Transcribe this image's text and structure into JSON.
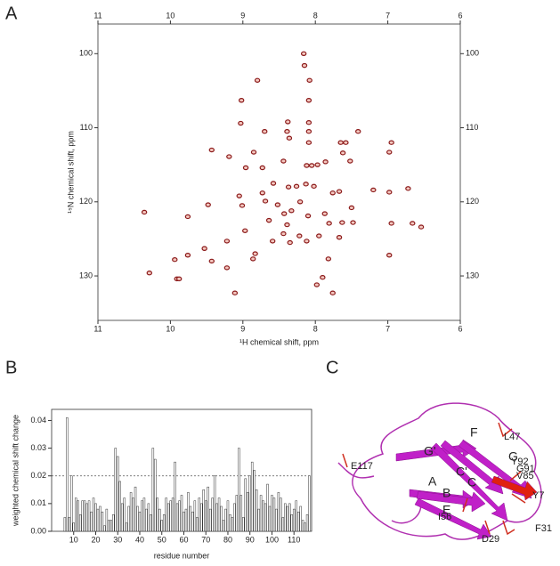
{
  "panel_labels": [
    "A",
    "B",
    "C"
  ],
  "chart_data": [
    {
      "type": "scatter",
      "x_label": "¹H chemical shift, ppm",
      "y_label": "¹⁵N chemical shift, ppm",
      "color": "#8b1a1a",
      "xlim": [
        11,
        6
      ],
      "xticks": [
        11,
        10,
        9,
        8,
        7,
        6
      ],
      "ylim": [
        136,
        96
      ],
      "yticks": [
        100,
        110,
        120,
        130
      ],
      "x": [
        8.16,
        8.15,
        8.8,
        8.08,
        9.02,
        8.09,
        9.03,
        8.38,
        8.09,
        8.7,
        8.39,
        7.41,
        8.09,
        7.58,
        7.65,
        6.95,
        6.98,
        7.62,
        8.36,
        8.09,
        9.43,
        9.19,
        8.85,
        8.96,
        8.73,
        8.44,
        7.97,
        7.52,
        7.86,
        8.12,
        8.05,
        8.58,
        8.37,
        8.26,
        8.13,
        8.02,
        7.76,
        7.67,
        7.2,
        6.98,
        6.72,
        8.73,
        9.05,
        9.01,
        8.69,
        8.52,
        8.21,
        8.43,
        8.33,
        8.1,
        7.87,
        7.5,
        9.48,
        10.36,
        9.76,
        8.64,
        8.39,
        7.81,
        7.63,
        7.48,
        6.95,
        6.66,
        6.54,
        8.44,
        8.22,
        7.95,
        8.59,
        8.35,
        8.12,
        7.67,
        8.97,
        9.22,
        9.53,
        8.83,
        9.76,
        9.94,
        9.43,
        6.98,
        8.86,
        7.82,
        9.22,
        10.29,
        9.91,
        9.88,
        7.9,
        7.98,
        9.11,
        7.76
      ],
      "values": [
        100,
        101.6,
        103.6,
        103.6,
        106.3,
        106.3,
        109.4,
        109.2,
        109.3,
        110.5,
        110.5,
        110.5,
        110.5,
        112,
        112,
        112,
        113.3,
        113.4,
        111.4,
        112,
        113,
        113.9,
        113.3,
        115.4,
        115.4,
        114.5,
        115,
        114.5,
        114.6,
        115.1,
        115.1,
        117.5,
        118,
        117.9,
        117.6,
        117.9,
        118.8,
        118.6,
        118.4,
        118.7,
        118.2,
        118.8,
        119.2,
        120.5,
        119.9,
        120.4,
        120,
        121.6,
        121.2,
        121.9,
        121.6,
        120.8,
        120.4,
        121.4,
        122,
        122.5,
        123.1,
        122.9,
        122.8,
        122.8,
        122.9,
        122.9,
        123.4,
        124.3,
        124.6,
        124.6,
        125.3,
        125.5,
        125.3,
        124.8,
        123.9,
        125.3,
        126.3,
        127,
        127.2,
        127.8,
        128,
        127.2,
        127.7,
        127.7,
        128.9,
        129.6,
        130.4,
        130.4,
        130.2,
        131.2,
        132.3,
        132.3
      ]
    },
    {
      "type": "bar",
      "x_label": "residue number",
      "y_label": "weighted chemical shift change",
      "color": "#ffffff",
      "xlim": [
        0,
        118
      ],
      "xticks": [
        10,
        20,
        30,
        40,
        50,
        60,
        70,
        80,
        90,
        100,
        110
      ],
      "ylim": [
        0,
        0.044
      ],
      "yticks": [
        {
          "value": 0,
          "label": "0.00"
        },
        0.01,
        0.02,
        0.03,
        0.04
      ],
      "reference_line": 0.02,
      "x": [
        6,
        7,
        8,
        9,
        10,
        11,
        12,
        13,
        14,
        15,
        16,
        17,
        18,
        19,
        20,
        21,
        22,
        23,
        24,
        25,
        26,
        27,
        28,
        29,
        30,
        31,
        32,
        33,
        34,
        35,
        36,
        37,
        38,
        39,
        40,
        41,
        42,
        43,
        44,
        45,
        46,
        47,
        48,
        49,
        50,
        51,
        52,
        53,
        54,
        55,
        56,
        57,
        58,
        59,
        60,
        61,
        62,
        63,
        64,
        65,
        66,
        67,
        68,
        69,
        70,
        71,
        72,
        73,
        74,
        75,
        76,
        77,
        78,
        79,
        80,
        81,
        82,
        83,
        84,
        85,
        86,
        87,
        88,
        89,
        90,
        91,
        92,
        93,
        94,
        95,
        96,
        97,
        98,
        99,
        100,
        101,
        102,
        103,
        104,
        105,
        106,
        107,
        108,
        109,
        110,
        111,
        112,
        113,
        114,
        115,
        116,
        117
      ],
      "values": [
        0.005,
        0.041,
        0.005,
        0.02,
        0.003,
        0.012,
        0.011,
        0.006,
        0.011,
        0.011,
        0.01,
        0.011,
        0.007,
        0.012,
        0.01,
        0.008,
        0.009,
        0.007,
        0.002,
        0.008,
        0.004,
        0.004,
        0.006,
        0.03,
        0.027,
        0.018,
        0.01,
        0.012,
        0.003,
        0.009,
        0.014,
        0.012,
        0.016,
        0.009,
        0.007,
        0.011,
        0.012,
        0.008,
        0.01,
        0.006,
        0.03,
        0.026,
        0.012,
        0.008,
        0.004,
        0.006,
        0.012,
        0.01,
        0.011,
        0.012,
        0.025,
        0.01,
        0.011,
        0.013,
        0.007,
        0.008,
        0.014,
        0.009,
        0.007,
        0.011,
        0.005,
        0.012,
        0.01,
        0.015,
        0.011,
        0.016,
        0.008,
        0.012,
        0.02,
        0.01,
        0.012,
        0.009,
        0.004,
        0.008,
        0.011,
        0.006,
        0.005,
        0.01,
        0.013,
        0.03,
        0.013,
        0.005,
        0.019,
        0.014,
        0.02,
        0.025,
        0.022,
        0.015,
        0.008,
        0.013,
        0.011,
        0.01,
        0.017,
        0.009,
        0.013,
        0.012,
        0.008,
        0.014,
        0.012,
        0.005,
        0.01,
        0.009,
        0.01,
        0.006,
        0.008,
        0.011,
        0.007,
        0.009,
        0.004,
        0.003,
        0.006,
        0.02
      ]
    }
  ],
  "structure": {
    "labels": [
      "L47",
      "G'",
      "E117",
      "F",
      "G",
      "Y92",
      "G91",
      "C'",
      "C",
      "V85",
      "Y7",
      "A",
      "B",
      "I56",
      "E",
      "F31",
      "D29"
    ]
  }
}
